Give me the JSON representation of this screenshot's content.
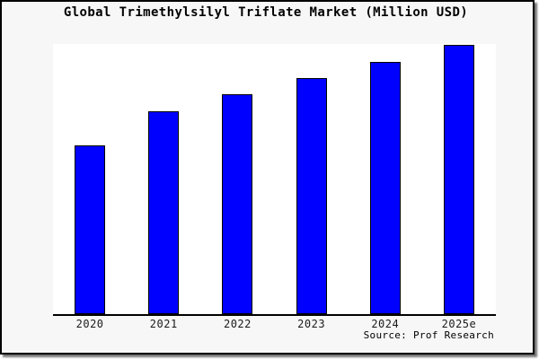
{
  "frame": {
    "background": "#f7f7f7",
    "border_color": "#000000"
  },
  "chart_data": {
    "type": "bar",
    "title": "Global Trimethylsilyl Triflate Market (Million USD)",
    "units": "Million USD",
    "categories": [
      "2020",
      "2021",
      "2022",
      "2023",
      "2024",
      "2025e"
    ],
    "values": [
      188,
      226,
      245,
      263,
      281,
      300
    ],
    "ylim": [
      0,
      300
    ],
    "xlabel": "",
    "ylabel": "",
    "y_axis_tick_labels_visible": false,
    "grid": false,
    "legend": false,
    "plot_background": "#ffffff",
    "bar_color": "#0000ff",
    "bar_border_color": "#000000",
    "axis_color": "#000000",
    "source": "Source: Prof Research"
  }
}
